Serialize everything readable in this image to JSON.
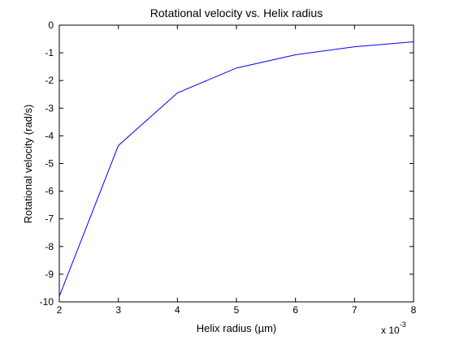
{
  "chart_data": {
    "type": "line",
    "title": "Rotational velocity vs. Helix radius",
    "xlabel": "Helix radius (µm)",
    "ylabel": "Rotational velocity (rad/s)",
    "x_multiplier": {
      "base": "x 10",
      "exponent": "-3"
    },
    "x": [
      2,
      3,
      4,
      5,
      6,
      7,
      8
    ],
    "xlim": [
      2,
      8
    ],
    "ylim": [
      -10,
      0
    ],
    "x_ticks": [
      "2",
      "3",
      "4",
      "5",
      "6",
      "7",
      "8"
    ],
    "y_ticks": [
      "0",
      "-1",
      "-2",
      "-3",
      "-4",
      "-5",
      "-6",
      "-7",
      "-8",
      "-9",
      "-10"
    ],
    "series": [
      {
        "values": [
          -9.8,
          -4.35,
          -2.45,
          -1.55,
          -1.07,
          -0.78,
          -0.6
        ],
        "color": "#0000ff"
      }
    ],
    "grid": false,
    "legend": "none"
  }
}
